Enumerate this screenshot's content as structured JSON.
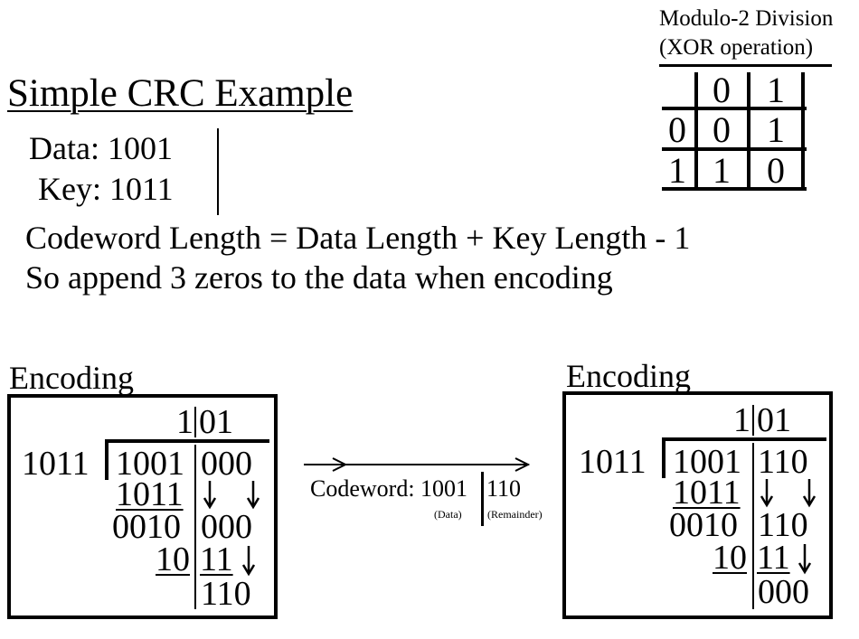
{
  "xor_table": {
    "title_line1": "Modulo-2 Division",
    "title_line2": "(XOR operation)",
    "col_headers": [
      "0",
      "1"
    ],
    "rows": [
      {
        "header": "0",
        "cells": [
          "0",
          "1"
        ]
      },
      {
        "header": "1",
        "cells": [
          "1",
          "0"
        ]
      }
    ]
  },
  "heading": "Simple CRC Example",
  "data_line": "Data: 1001",
  "key_line": "Key: 1011",
  "rule_line1": "Codeword Length = Data Length + Key Length - 1",
  "rule_line2": "So append 3 zeros to the data when encoding",
  "left_panel": {
    "label": "Encoding",
    "quotient_a": "1",
    "quotient_b": "01",
    "divisor": "1011",
    "dividend_a": "1001",
    "dividend_b": "000",
    "step1_sub": "1011",
    "step1_res_a": "0010",
    "step1_res_b": "000",
    "step2_sub_a": "10",
    "step2_sub_b": "11",
    "remainder": "110"
  },
  "middle": {
    "codeword_label": "Codeword: 1001",
    "codeword_remainder": "110",
    "data_note": "(Data)",
    "remainder_note": "(Remainder)"
  },
  "right_panel": {
    "label": "Encoding",
    "quotient_a": "1",
    "quotient_b": "01",
    "divisor": "1011",
    "dividend_a": "1001",
    "dividend_b": "110",
    "step1_sub": "1011",
    "step1_res_a": "0010",
    "step1_res_b": "110",
    "step2_sub_a": "10",
    "step2_sub_b": "11",
    "remainder": "000"
  }
}
